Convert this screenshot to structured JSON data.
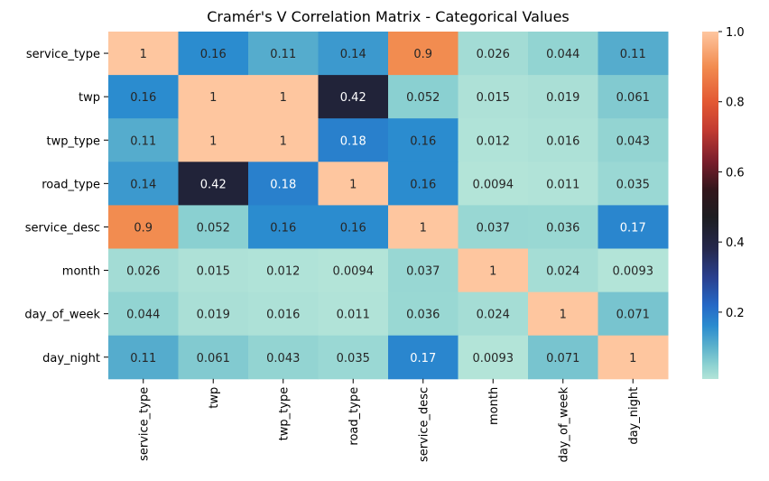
{
  "chart_data": {
    "type": "heatmap",
    "title": "Cramér's V Correlation Matrix - Categorical Values",
    "xlabel": "",
    "ylabel": "",
    "rows": [
      "service_type",
      "twp",
      "twp_type",
      "road_type",
      "service_desc",
      "month",
      "day_of_week",
      "day_night"
    ],
    "columns": [
      "service_type",
      "twp",
      "twp_type",
      "road_type",
      "service_desc",
      "month",
      "day_of_week",
      "day_night"
    ],
    "values": [
      [
        1,
        0.16,
        0.11,
        0.14,
        0.9,
        0.026,
        0.044,
        0.11
      ],
      [
        0.16,
        1,
        1,
        0.42,
        0.052,
        0.015,
        0.019,
        0.061
      ],
      [
        0.11,
        1,
        1,
        0.18,
        0.16,
        0.012,
        0.016,
        0.043
      ],
      [
        0.14,
        0.42,
        0.18,
        1,
        0.16,
        0.0094,
        0.011,
        0.035
      ],
      [
        0.9,
        0.052,
        0.16,
        0.16,
        1,
        0.037,
        0.036,
        0.17
      ],
      [
        0.026,
        0.015,
        0.012,
        0.0094,
        0.037,
        1,
        0.024,
        0.0093
      ],
      [
        0.044,
        0.019,
        0.016,
        0.011,
        0.036,
        0.024,
        1,
        0.071
      ],
      [
        0.11,
        0.061,
        0.043,
        0.035,
        0.17,
        0.0093,
        0.071,
        1
      ]
    ],
    "value_labels": [
      [
        "1",
        "0.16",
        "0.11",
        "0.14",
        "0.9",
        "0.026",
        "0.044",
        "0.11"
      ],
      [
        "0.16",
        "1",
        "1",
        "0.42",
        "0.052",
        "0.015",
        "0.019",
        "0.061"
      ],
      [
        "0.11",
        "1",
        "1",
        "0.18",
        "0.16",
        "0.012",
        "0.016",
        "0.043"
      ],
      [
        "0.14",
        "0.42",
        "0.18",
        "1",
        "0.16",
        "0.0094",
        "0.011",
        "0.035"
      ],
      [
        "0.9",
        "0.052",
        "0.16",
        "0.16",
        "1",
        "0.037",
        "0.036",
        "0.17"
      ],
      [
        "0.026",
        "0.015",
        "0.012",
        "0.0094",
        "0.037",
        "1",
        "0.024",
        "0.0093"
      ],
      [
        "0.044",
        "0.019",
        "0.016",
        "0.011",
        "0.036",
        "0.024",
        "1",
        "0.071"
      ],
      [
        "0.11",
        "0.061",
        "0.043",
        "0.035",
        "0.17",
        "0.0093",
        "0.071",
        "1"
      ]
    ],
    "colormap": "icefire",
    "colorbar": {
      "range": [
        0.0093,
        1.0
      ],
      "ticks": [
        0.2,
        0.4,
        0.6,
        0.8,
        1.0
      ],
      "tick_labels": [
        "0.2",
        "0.4",
        "0.6",
        "0.8",
        "1.0"
      ],
      "color_stops": [
        {
          "v": 0.0093,
          "color": "#b3e4d8"
        },
        {
          "v": 0.05,
          "color": "#8cd1d1"
        },
        {
          "v": 0.1,
          "color": "#5db2cc"
        },
        {
          "v": 0.16,
          "color": "#2b8ccf"
        },
        {
          "v": 0.22,
          "color": "#2568c6"
        },
        {
          "v": 0.3,
          "color": "#2a3f8e"
        },
        {
          "v": 0.38,
          "color": "#25284d"
        },
        {
          "v": 0.47,
          "color": "#1d1d21"
        },
        {
          "v": 0.55,
          "color": "#33161c"
        },
        {
          "v": 0.63,
          "color": "#7a1e2c"
        },
        {
          "v": 0.72,
          "color": "#c33b31"
        },
        {
          "v": 0.8,
          "color": "#e35933"
        },
        {
          "v": 0.9,
          "color": "#f28c50"
        },
        {
          "v": 1.0,
          "color": "#fec69f"
        }
      ]
    },
    "grid": false,
    "legend": "colorbar-right"
  }
}
